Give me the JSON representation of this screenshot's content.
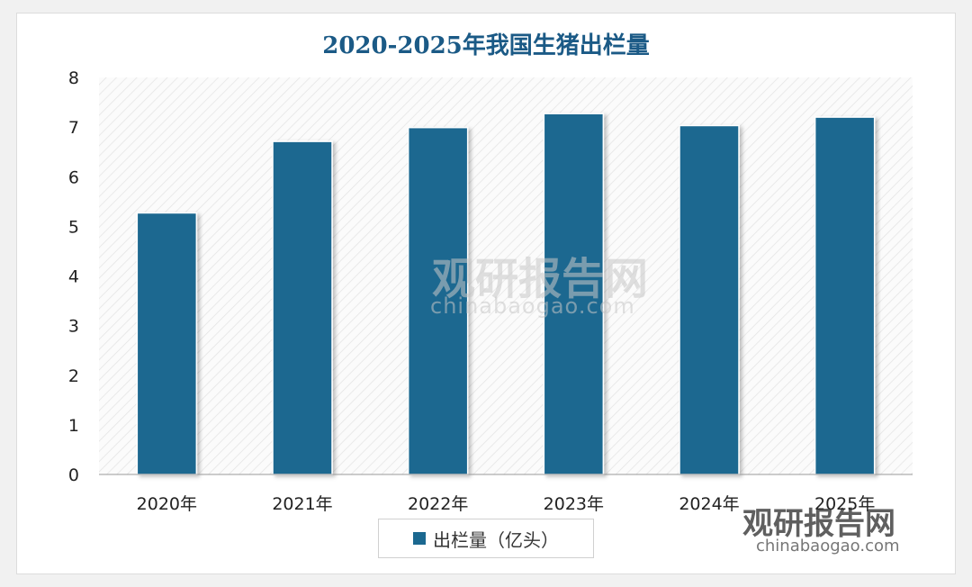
{
  "chart_data": {
    "type": "bar",
    "title": "2020-2025年我国生猪出栏量",
    "categories": [
      "2020年",
      "2021年",
      "2022年",
      "2023年",
      "2024年",
      "2025年"
    ],
    "series": [
      {
        "name": "出栏量（亿头）",
        "values": [
          5.27,
          6.71,
          6.99,
          7.27,
          7.03,
          7.2
        ]
      }
    ],
    "ylim": [
      0,
      8
    ],
    "yticks": [
      "0",
      "1",
      "2",
      "3",
      "4",
      "5",
      "6",
      "7",
      "8"
    ],
    "grid": false,
    "legend": "bottom",
    "colors": {
      "bar": "#1b6890",
      "title": "#1b5a86"
    }
  },
  "watermark": {
    "center_text": "观研报告网",
    "center_sub": "chinabaogao.com",
    "corner_text": "观研报告网",
    "corner_sub": "chinabaogao.com"
  }
}
